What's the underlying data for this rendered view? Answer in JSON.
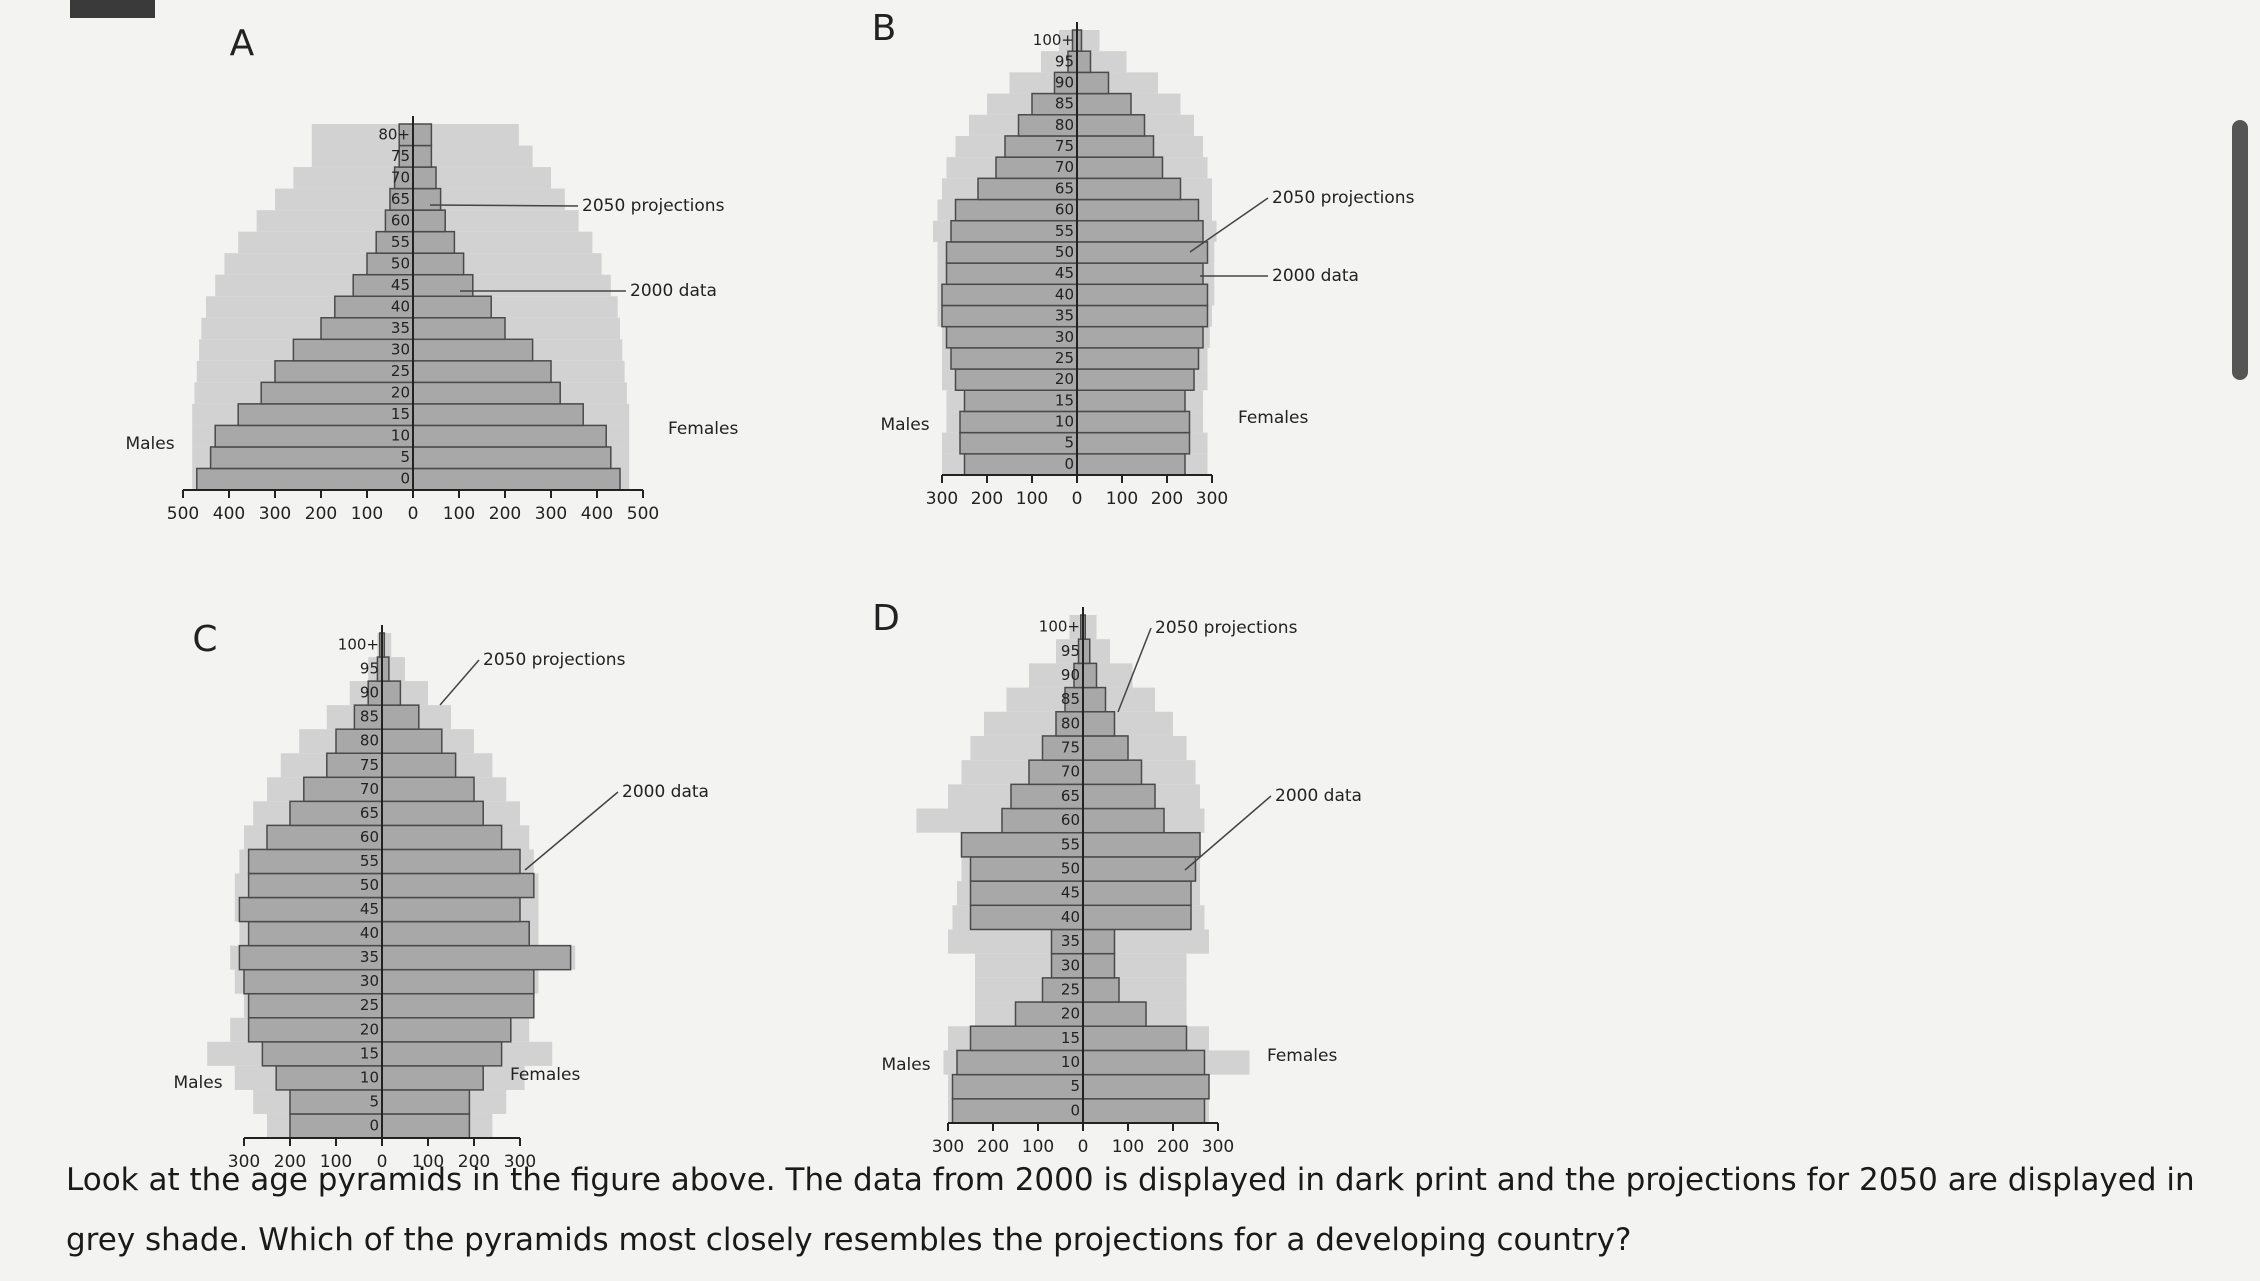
{
  "question": "Look at the age pyramids in the figure above. The data from 2000 is displayed in dark print and the projections for 2050 are displayed in grey shade. Which of the pyramids most closely resembles the projections for a developing country?",
  "chart_data": [
    {
      "type": "pyramid",
      "title": "A",
      "left_label": "Males",
      "right_label": "Females",
      "categories": [
        "0",
        "5",
        "10",
        "15",
        "20",
        "25",
        "30",
        "35",
        "40",
        "45",
        "50",
        "55",
        "60",
        "65",
        "70",
        "75",
        "80+"
      ],
      "series": [
        {
          "name": "2050 projections",
          "color": "#d2d2d2",
          "males": [
            480,
            480,
            480,
            480,
            475,
            470,
            465,
            460,
            450,
            430,
            410,
            380,
            340,
            300,
            260,
            220,
            220
          ],
          "females": [
            470,
            470,
            470,
            470,
            465,
            460,
            455,
            450,
            445,
            430,
            410,
            390,
            360,
            330,
            300,
            260,
            230
          ]
        },
        {
          "name": "2000 data",
          "color": "#a8a8a8",
          "males": [
            470,
            440,
            430,
            380,
            330,
            300,
            260,
            200,
            170,
            130,
            100,
            80,
            60,
            50,
            40,
            30,
            30
          ],
          "females": [
            450,
            430,
            420,
            370,
            320,
            300,
            260,
            200,
            170,
            130,
            110,
            90,
            70,
            60,
            50,
            40,
            40
          ]
        }
      ],
      "xlim": [
        0,
        500
      ],
      "xticks": [
        0,
        100,
        200,
        300,
        400,
        500
      ]
    },
    {
      "type": "pyramid",
      "title": "B",
      "left_label": "Males",
      "right_label": "Females",
      "categories": [
        "0",
        "5",
        "10",
        "15",
        "20",
        "25",
        "30",
        "35",
        "40",
        "45",
        "50",
        "55",
        "60",
        "65",
        "70",
        "75",
        "80",
        "85",
        "90",
        "95",
        "100+"
      ],
      "series": [
        {
          "name": "2050 projections",
          "color": "#d2d2d2",
          "males": [
            300,
            300,
            290,
            290,
            300,
            300,
            300,
            310,
            310,
            310,
            310,
            320,
            310,
            300,
            290,
            270,
            240,
            200,
            150,
            80,
            40
          ],
          "females": [
            290,
            290,
            280,
            280,
            290,
            290,
            295,
            300,
            305,
            305,
            305,
            310,
            300,
            300,
            290,
            280,
            260,
            230,
            180,
            110,
            50
          ]
        },
        {
          "name": "2000 data",
          "color": "#a8a8a8",
          "males": [
            250,
            260,
            260,
            250,
            270,
            280,
            290,
            300,
            300,
            290,
            290,
            280,
            270,
            220,
            180,
            160,
            130,
            100,
            50,
            20,
            10
          ],
          "females": [
            240,
            250,
            250,
            240,
            260,
            270,
            280,
            290,
            290,
            280,
            290,
            280,
            270,
            230,
            190,
            170,
            150,
            120,
            70,
            30,
            10
          ]
        }
      ],
      "xlim": [
        0,
        300
      ],
      "xticks": [
        0,
        100,
        200,
        300
      ]
    },
    {
      "type": "pyramid",
      "title": "C",
      "left_label": "Males",
      "right_label": "Females",
      "categories": [
        "0",
        "5",
        "10",
        "15",
        "20",
        "25",
        "30",
        "35",
        "40",
        "45",
        "50",
        "55",
        "60",
        "65",
        "70",
        "75",
        "80",
        "85",
        "90",
        "95",
        "100+"
      ],
      "series": [
        {
          "name": "2050 projections",
          "color": "#d2d2d2",
          "males": [
            250,
            280,
            320,
            380,
            330,
            300,
            320,
            330,
            310,
            320,
            320,
            310,
            300,
            280,
            250,
            220,
            180,
            120,
            70,
            30,
            10
          ],
          "females": [
            240,
            270,
            310,
            370,
            320,
            330,
            340,
            420,
            340,
            340,
            340,
            330,
            320,
            300,
            270,
            240,
            200,
            150,
            100,
            50,
            20
          ]
        },
        {
          "name": "2000 data",
          "color": "#a8a8a8",
          "males": [
            200,
            200,
            230,
            260,
            290,
            290,
            300,
            310,
            290,
            310,
            290,
            290,
            250,
            200,
            170,
            120,
            100,
            60,
            30,
            10,
            5
          ],
          "females": [
            190,
            190,
            220,
            260,
            280,
            330,
            330,
            410,
            320,
            300,
            330,
            300,
            260,
            220,
            200,
            160,
            130,
            80,
            40,
            15,
            5
          ]
        }
      ],
      "xlim": [
        0,
        300
      ],
      "xticks": [
        0,
        100,
        200,
        300
      ]
    },
    {
      "type": "pyramid",
      "title": "D",
      "left_label": "Males",
      "right_label": "Females",
      "categories": [
        "0",
        "5",
        "10",
        "15",
        "20",
        "25",
        "30",
        "35",
        "40",
        "45",
        "50",
        "55",
        "60",
        "65",
        "70",
        "75",
        "80",
        "85",
        "90",
        "95",
        "100+"
      ],
      "series": [
        {
          "name": "2050 projections",
          "color": "#d2d2d2",
          "males": [
            300,
            300,
            310,
            300,
            240,
            240,
            240,
            300,
            290,
            280,
            270,
            270,
            370,
            300,
            270,
            250,
            220,
            170,
            120,
            60,
            30
          ],
          "females": [
            280,
            280,
            370,
            280,
            230,
            230,
            230,
            280,
            270,
            260,
            260,
            250,
            270,
            260,
            250,
            230,
            200,
            160,
            110,
            60,
            30
          ]
        },
        {
          "name": "2000 data",
          "color": "#a8a8a8",
          "males": [
            290,
            290,
            280,
            250,
            150,
            90,
            70,
            70,
            250,
            250,
            250,
            270,
            180,
            160,
            120,
            90,
            60,
            40,
            20,
            10,
            5
          ],
          "females": [
            270,
            280,
            270,
            230,
            140,
            80,
            70,
            70,
            240,
            240,
            250,
            260,
            180,
            160,
            130,
            100,
            70,
            50,
            30,
            15,
            5
          ]
        }
      ],
      "xlim": [
        0,
        300
      ],
      "xticks": [
        0,
        100,
        200,
        300
      ]
    }
  ]
}
